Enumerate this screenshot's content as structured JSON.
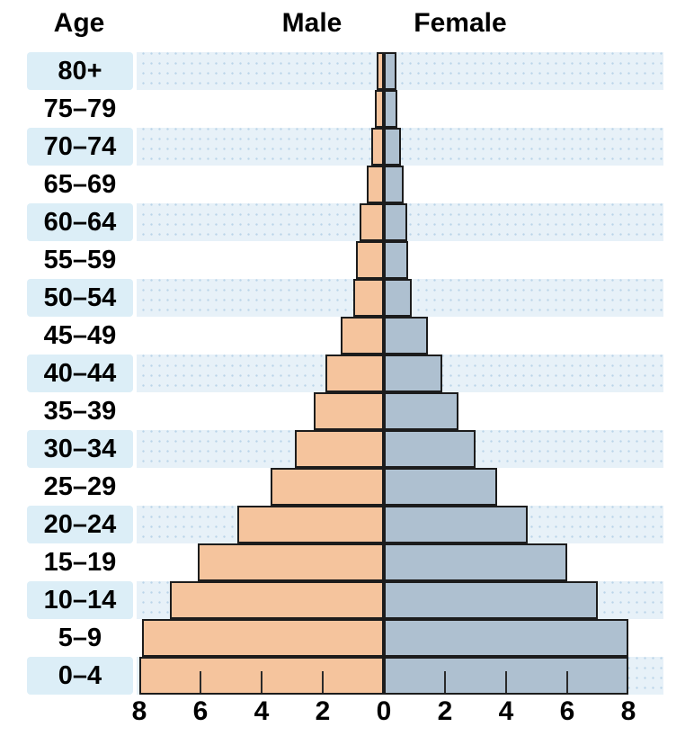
{
  "headers": {
    "age": "Age",
    "male": "Male",
    "female": "Female"
  },
  "axis": {
    "tick_labels": [
      "8",
      "6",
      "4",
      "2",
      "0",
      "2",
      "4",
      "6",
      "8"
    ],
    "max_each_side": 8,
    "tick_interval": 2
  },
  "colors": {
    "male_bar": "#f5c49d",
    "female_bar": "#aec0d0",
    "bar_border": "#1c1c1c",
    "plot_stripe": "#e7f1f8",
    "label_stripe": "#dceef7",
    "background": "#ffffff",
    "text": "#000000"
  },
  "chart_data": {
    "type": "bar",
    "subtype": "population-pyramid",
    "title": "",
    "xlabel": "",
    "ylabel": "Age",
    "xlim_each_side": [
      0,
      8
    ],
    "grid": false,
    "legend_position": "top (Male left / Female right headers)",
    "categories": [
      "80+",
      "75–79",
      "70–74",
      "65–69",
      "60–64",
      "55–59",
      "50–54",
      "45–49",
      "40–44",
      "35–39",
      "30–34",
      "25–29",
      "20–24",
      "15–19",
      "10–14",
      "5–9",
      "0–4"
    ],
    "series": [
      {
        "name": "Male",
        "side": "left",
        "values": [
          0.25,
          0.3,
          0.4,
          0.55,
          0.8,
          0.9,
          1.0,
          1.4,
          1.9,
          2.3,
          2.9,
          3.7,
          4.8,
          6.1,
          7.0,
          7.9,
          8.0
        ]
      },
      {
        "name": "Female",
        "side": "right",
        "values": [
          0.4,
          0.45,
          0.55,
          0.65,
          0.75,
          0.8,
          0.9,
          1.45,
          1.9,
          2.45,
          3.0,
          3.7,
          4.7,
          6.0,
          7.0,
          8.0,
          8.0
        ]
      }
    ],
    "striped_row_indices": [
      0,
      2,
      4,
      6,
      8,
      10,
      12,
      14,
      16
    ]
  }
}
